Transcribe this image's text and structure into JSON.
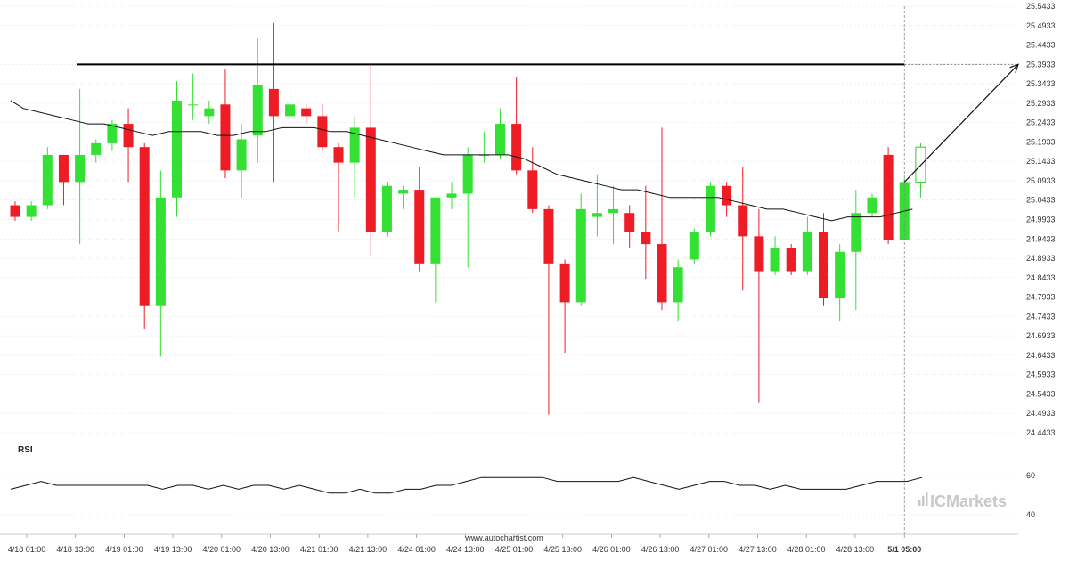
{
  "chart_data": {
    "type": "candlestick",
    "y_axis": {
      "ticks": [
        "25.5433",
        "25.4933",
        "25.4433",
        "25.3933",
        "25.3433",
        "25.2933",
        "25.2433",
        "25.1933",
        "25.1433",
        "25.0933",
        "25.0433",
        "24.9933",
        "24.9433",
        "24.8933",
        "24.8433",
        "24.7933",
        "24.7433",
        "24.6933",
        "24.6433",
        "24.5933",
        "24.5433",
        "24.4933",
        "24.4433"
      ],
      "range": [
        24.4433,
        25.5433
      ]
    },
    "x_axis": {
      "labels": [
        "4/18 01:00",
        "4/18 13:00",
        "4/19 01:00",
        "4/19 13:00",
        "4/20 01:00",
        "4/20 13:00",
        "4/21 01:00",
        "4/21 13:00",
        "4/24 01:00",
        "4/24 13:00",
        "4/25 01:00",
        "4/25 13:00",
        "4/26 01:00",
        "4/26 13:00",
        "4/27 01:00",
        "4/27 13:00",
        "4/28 01:00",
        "4/28 13:00",
        "5/1 05:00"
      ],
      "current_label": "5/1 05:00"
    },
    "candles": [
      {
        "o": 25.03,
        "h": 25.04,
        "l": 24.99,
        "c": 25.0
      },
      {
        "o": 25.0,
        "h": 25.04,
        "l": 24.99,
        "c": 25.03
      },
      {
        "o": 25.03,
        "h": 25.18,
        "l": 25.02,
        "c": 25.16
      },
      {
        "o": 25.16,
        "h": 25.16,
        "l": 25.03,
        "c": 25.09
      },
      {
        "o": 25.09,
        "h": 25.33,
        "l": 24.93,
        "c": 25.16
      },
      {
        "o": 25.16,
        "h": 25.2,
        "l": 25.14,
        "c": 25.19
      },
      {
        "o": 25.19,
        "h": 25.25,
        "l": 25.17,
        "c": 25.24
      },
      {
        "o": 25.24,
        "h": 25.28,
        "l": 25.09,
        "c": 25.18
      },
      {
        "o": 25.18,
        "h": 25.19,
        "l": 24.71,
        "c": 24.77
      },
      {
        "o": 24.77,
        "h": 25.12,
        "l": 24.64,
        "c": 25.05
      },
      {
        "o": 25.05,
        "h": 25.35,
        "l": 25.0,
        "c": 25.3
      },
      {
        "o": 25.29,
        "h": 25.37,
        "l": 25.25,
        "c": 25.29
      },
      {
        "o": 25.26,
        "h": 25.3,
        "l": 25.24,
        "c": 25.28
      },
      {
        "o": 25.29,
        "h": 25.38,
        "l": 25.1,
        "c": 25.12
      },
      {
        "o": 25.12,
        "h": 25.24,
        "l": 25.05,
        "c": 25.2
      },
      {
        "o": 25.21,
        "h": 25.46,
        "l": 25.14,
        "c": 25.34
      },
      {
        "o": 25.33,
        "h": 25.5,
        "l": 25.09,
        "c": 25.26
      },
      {
        "o": 25.26,
        "h": 25.33,
        "l": 25.24,
        "c": 25.29
      },
      {
        "o": 25.28,
        "h": 25.29,
        "l": 25.24,
        "c": 25.26
      },
      {
        "o": 25.26,
        "h": 25.29,
        "l": 25.17,
        "c": 25.18
      },
      {
        "o": 25.18,
        "h": 25.19,
        "l": 24.96,
        "c": 25.14
      },
      {
        "o": 25.14,
        "h": 25.26,
        "l": 25.05,
        "c": 25.23
      },
      {
        "o": 25.23,
        "h": 25.39,
        "l": 24.9,
        "c": 24.96
      },
      {
        "o": 24.96,
        "h": 25.09,
        "l": 24.95,
        "c": 25.08
      },
      {
        "o": 25.06,
        "h": 25.08,
        "l": 25.02,
        "c": 25.07
      },
      {
        "o": 25.07,
        "h": 25.13,
        "l": 24.86,
        "c": 24.88
      },
      {
        "o": 24.88,
        "h": 25.05,
        "l": 24.78,
        "c": 25.05
      },
      {
        "o": 25.05,
        "h": 25.09,
        "l": 25.02,
        "c": 25.06
      },
      {
        "o": 25.06,
        "h": 25.18,
        "l": 24.87,
        "c": 25.16
      },
      {
        "o": 25.16,
        "h": 25.22,
        "l": 25.14,
        "c": 25.16
      },
      {
        "o": 25.16,
        "h": 25.28,
        "l": 25.15,
        "c": 25.24
      },
      {
        "o": 25.24,
        "h": 25.36,
        "l": 25.11,
        "c": 25.12
      },
      {
        "o": 25.12,
        "h": 25.18,
        "l": 25.01,
        "c": 25.02
      },
      {
        "o": 25.02,
        "h": 25.03,
        "l": 24.49,
        "c": 24.88
      },
      {
        "o": 24.88,
        "h": 24.89,
        "l": 24.65,
        "c": 24.78
      },
      {
        "o": 24.78,
        "h": 25.06,
        "l": 24.77,
        "c": 25.02
      },
      {
        "o": 25.0,
        "h": 25.11,
        "l": 24.95,
        "c": 25.01
      },
      {
        "o": 25.01,
        "h": 25.08,
        "l": 24.93,
        "c": 25.02
      },
      {
        "o": 25.01,
        "h": 25.03,
        "l": 24.92,
        "c": 24.96
      },
      {
        "o": 24.96,
        "h": 25.08,
        "l": 24.84,
        "c": 24.93
      },
      {
        "o": 24.93,
        "h": 25.23,
        "l": 24.76,
        "c": 24.78
      },
      {
        "o": 24.78,
        "h": 24.89,
        "l": 24.73,
        "c": 24.87
      },
      {
        "o": 24.89,
        "h": 24.97,
        "l": 24.88,
        "c": 24.96
      },
      {
        "o": 24.96,
        "h": 25.09,
        "l": 24.95,
        "c": 25.08
      },
      {
        "o": 25.08,
        "h": 25.09,
        "l": 25.0,
        "c": 25.03
      },
      {
        "o": 25.03,
        "h": 25.13,
        "l": 24.81,
        "c": 24.95
      },
      {
        "o": 24.95,
        "h": 25.02,
        "l": 24.52,
        "c": 24.86
      },
      {
        "o": 24.86,
        "h": 24.95,
        "l": 24.85,
        "c": 24.92
      },
      {
        "o": 24.92,
        "h": 24.93,
        "l": 24.85,
        "c": 24.86
      },
      {
        "o": 24.86,
        "h": 25.0,
        "l": 24.85,
        "c": 24.96
      },
      {
        "o": 24.96,
        "h": 25.01,
        "l": 24.77,
        "c": 24.79
      },
      {
        "o": 24.79,
        "h": 24.93,
        "l": 24.73,
        "c": 24.91
      },
      {
        "o": 24.91,
        "h": 25.07,
        "l": 24.76,
        "c": 25.01
      },
      {
        "o": 25.01,
        "h": 25.06,
        "l": 25.0,
        "c": 25.05
      },
      {
        "o": 25.16,
        "h": 25.18,
        "l": 24.93,
        "c": 24.94
      },
      {
        "o": 24.94,
        "h": 25.1,
        "l": 24.94,
        "c": 25.09
      }
    ],
    "current_candle": {
      "o": 25.09,
      "h": 25.19,
      "l": 25.05,
      "c": 25.18
    },
    "moving_average": [
      25.3,
      25.28,
      25.27,
      25.26,
      25.25,
      25.24,
      25.24,
      25.23,
      25.22,
      25.21,
      25.22,
      25.22,
      25.22,
      25.21,
      25.21,
      25.22,
      25.22,
      25.23,
      25.23,
      25.23,
      25.22,
      25.22,
      25.21,
      25.2,
      25.19,
      25.18,
      25.17,
      25.16,
      25.16,
      25.16,
      25.16,
      25.16,
      25.15,
      25.13,
      25.11,
      25.1,
      25.09,
      25.08,
      25.07,
      25.07,
      25.06,
      25.05,
      25.05,
      25.05,
      25.05,
      25.04,
      25.03,
      25.02,
      25.02,
      25.01,
      25.0,
      24.99,
      25.0,
      25.0,
      25.0,
      25.01,
      25.02
    ],
    "resistance_level": 25.3933,
    "forecast_arrow": {
      "from": 25.09,
      "to": 25.3933
    },
    "rsi": {
      "label": "RSI",
      "ticks": [
        "60",
        "40"
      ],
      "values": [
        53,
        55,
        57,
        55,
        55,
        55,
        55,
        55,
        55,
        55,
        53,
        55,
        55,
        53,
        55,
        53,
        55,
        55,
        53,
        55,
        53,
        51,
        51,
        53,
        51,
        51,
        53,
        53,
        55,
        55,
        57,
        59,
        59,
        59,
        59,
        59,
        57,
        57,
        57,
        57,
        57,
        59,
        57,
        55,
        53,
        55,
        57,
        57,
        55,
        55,
        53,
        55,
        53,
        53,
        53,
        53,
        55,
        57,
        57,
        57,
        59
      ]
    }
  },
  "footer": {
    "source": "www.autochartist.com",
    "brand": "ICMarkets"
  },
  "colors": {
    "bull": "#33e033",
    "bear": "#ee1c25",
    "current_outline": "#33cc33",
    "ma": "#111111",
    "resistance": "#000000",
    "rsi": "#111111",
    "grid": "#d8d8d8",
    "brand": "#c8c8c8"
  }
}
